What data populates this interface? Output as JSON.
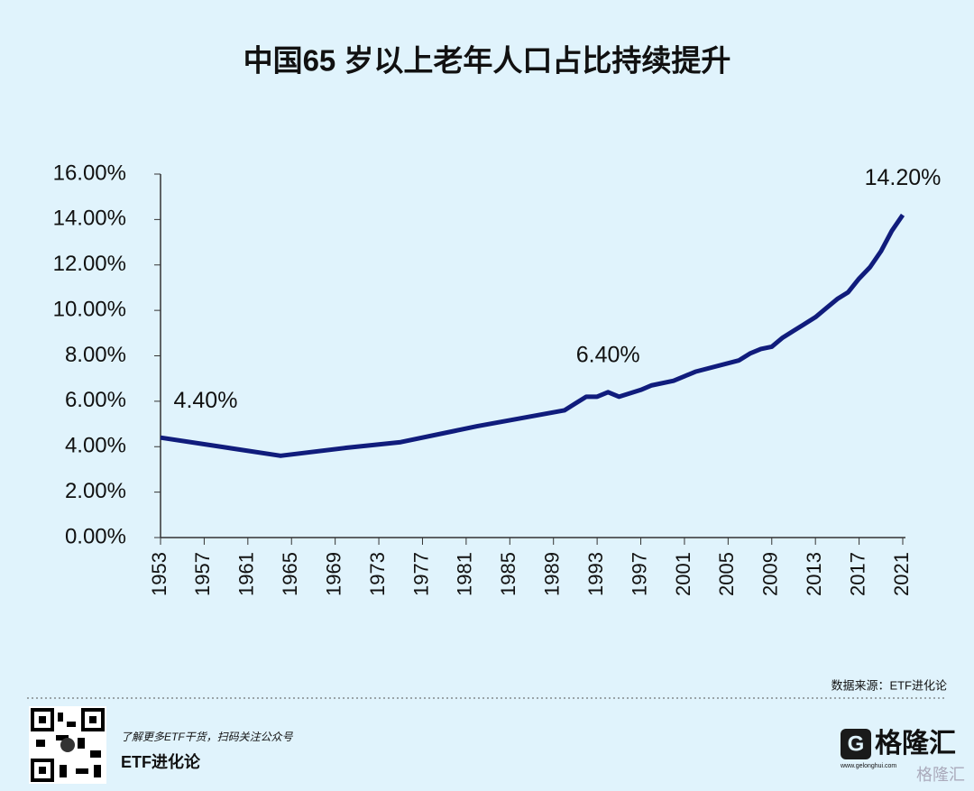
{
  "chart_data": {
    "type": "line",
    "title": "中国65 岁以上老年人口占比持续提升",
    "x": [
      1953,
      1964,
      1970,
      1975,
      1980,
      1982,
      1990,
      1991,
      1992,
      1993,
      1994,
      1995,
      1997,
      1998,
      2000,
      2001,
      2002,
      2006,
      2007,
      2008,
      2009,
      2010,
      2011,
      2012,
      2013,
      2014,
      2015,
      2016,
      2017,
      2018,
      2019,
      2020,
      2021
    ],
    "series": [
      {
        "name": "65岁以上人口占比",
        "color": "#101c7c",
        "values": [
          4.4,
          3.6,
          3.95,
          4.2,
          4.7,
          4.9,
          5.6,
          5.9,
          6.2,
          6.2,
          6.4,
          6.2,
          6.5,
          6.7,
          6.9,
          7.1,
          7.3,
          7.8,
          8.1,
          8.3,
          8.4,
          8.8,
          9.1,
          9.4,
          9.7,
          10.1,
          10.5,
          10.8,
          11.4,
          11.9,
          12.6,
          13.5,
          14.2
        ],
        "value_labels": [
          "4.40%",
          null,
          null,
          null,
          null,
          null,
          null,
          null,
          null,
          null,
          "6.40%",
          null,
          null,
          null,
          null,
          null,
          null,
          null,
          null,
          null,
          null,
          null,
          null,
          null,
          null,
          null,
          null,
          null,
          null,
          null,
          null,
          null,
          "14.20%"
        ]
      }
    ],
    "xlim": [
      1953,
      2021
    ],
    "xticks": [
      1953,
      1957,
      1961,
      1965,
      1969,
      1973,
      1977,
      1981,
      1985,
      1989,
      1993,
      1997,
      2001,
      2005,
      2009,
      2013,
      2017,
      2021
    ],
    "ylim": [
      0,
      16
    ],
    "yticks": [
      {
        "value": 0,
        "label": "0.00%"
      },
      {
        "value": 2,
        "label": "2.00%"
      },
      {
        "value": 4,
        "label": "4.00%"
      },
      {
        "value": 6,
        "label": "6.00%"
      },
      {
        "value": 8,
        "label": "8.00%"
      },
      {
        "value": 10,
        "label": "10.00%"
      },
      {
        "value": 12,
        "label": "12.00%"
      },
      {
        "value": 14,
        "label": "14.00%"
      },
      {
        "value": 16,
        "label": "16.00%"
      }
    ],
    "grid": false
  },
  "footer": {
    "source": "数据来源：ETF进化论",
    "promo": "了解更多ETF干货，扫码关注公众号",
    "account": "ETF进化论",
    "logo": "格隆汇",
    "logo_url": "www.gelonghui.com",
    "watermark": "格隆汇"
  }
}
